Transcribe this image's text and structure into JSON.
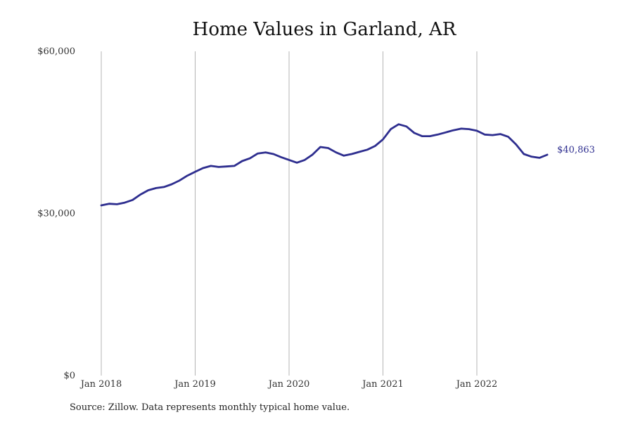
{
  "chart_data": {
    "type": "line",
    "title": "Home Values in Garland, AR",
    "xlabel": "",
    "ylabel": "",
    "ylim": [
      0,
      60000
    ],
    "y_ticks": [
      {
        "value": 0,
        "label": "$0"
      },
      {
        "value": 30000,
        "label": "$30,000"
      },
      {
        "value": 60000,
        "label": "$60,000"
      }
    ],
    "x_ticks": [
      {
        "value": "2018-01",
        "label": "Jan 2018"
      },
      {
        "value": "2019-01",
        "label": "Jan 2019"
      },
      {
        "value": "2020-01",
        "label": "Jan 2020"
      },
      {
        "value": "2021-01",
        "label": "Jan 2021"
      },
      {
        "value": "2022-01",
        "label": "Jan 2022"
      }
    ],
    "xlim": [
      "2018-01",
      "2022-10"
    ],
    "vertical_grid": true,
    "horizontal_grid": false,
    "line_color": "#2e2e8f",
    "end_label": "$40,863",
    "series": [
      {
        "x": [
          "2018-01",
          "2018-02",
          "2018-03",
          "2018-04",
          "2018-05",
          "2018-06",
          "2018-07",
          "2018-08",
          "2018-09",
          "2018-10",
          "2018-11",
          "2018-12",
          "2019-01",
          "2019-02",
          "2019-03",
          "2019-04",
          "2019-05",
          "2019-06",
          "2019-07",
          "2019-08",
          "2019-09",
          "2019-10",
          "2019-11",
          "2019-12",
          "2020-01",
          "2020-02",
          "2020-03",
          "2020-04",
          "2020-05",
          "2020-06",
          "2020-07",
          "2020-08",
          "2020-09",
          "2020-10",
          "2020-11",
          "2020-12",
          "2021-01",
          "2021-02",
          "2021-03",
          "2021-04",
          "2021-05",
          "2021-06",
          "2021-07",
          "2021-08",
          "2021-09",
          "2021-10",
          "2021-11",
          "2021-12",
          "2022-01",
          "2022-02",
          "2022-03",
          "2022-04",
          "2022-05",
          "2022-06",
          "2022-07",
          "2022-08",
          "2022-09",
          "2022-10"
        ],
        "values": [
          31500,
          31800,
          31700,
          32000,
          32500,
          33500,
          34300,
          34700,
          34900,
          35400,
          36100,
          37000,
          37700,
          38400,
          38800,
          38600,
          38700,
          38800,
          39700,
          40200,
          41100,
          41300,
          41000,
          40400,
          39900,
          39400,
          39900,
          40900,
          42300,
          42100,
          41300,
          40700,
          41000,
          41400,
          41800,
          42500,
          43700,
          45600,
          46500,
          46100,
          44900,
          44300,
          44300,
          44600,
          45000,
          45400,
          45700,
          45600,
          45300,
          44600,
          44500,
          44700,
          44200,
          42800,
          41000,
          40500,
          40300,
          40863
        ]
      }
    ]
  },
  "source_note": "Source: Zillow. Data represents monthly typical home value."
}
